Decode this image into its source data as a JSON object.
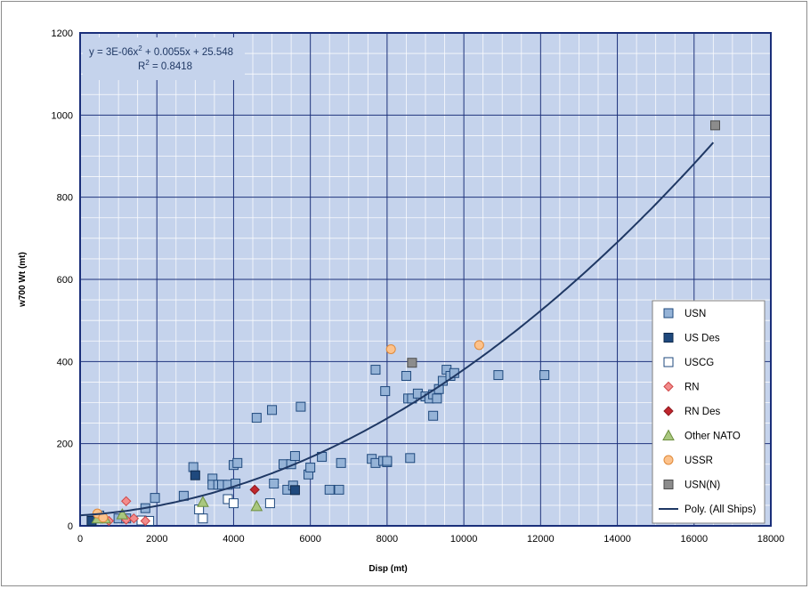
{
  "chart_data": {
    "type": "scatter",
    "title": "",
    "xlabel": "Disp (mt)",
    "ylabel": "w700 Wt (mt)",
    "xlim": [
      0,
      18000
    ],
    "ylim": [
      0,
      1200
    ],
    "x_ticks": [
      0,
      2000,
      4000,
      6000,
      8000,
      10000,
      12000,
      14000,
      16000,
      18000
    ],
    "y_ticks": [
      0,
      200,
      400,
      600,
      800,
      1000,
      1200
    ],
    "grid": true,
    "legend_position": "right",
    "trendline": {
      "name": "Poly. (All Ships)",
      "equation": "y = 3E-06x",
      "equation_exp": "2",
      "equation_tail": " + 0.0055x + 25.548",
      "r2_label": "R",
      "r2_exp": "2",
      "r2_value": " = 0.8418",
      "coefficients": [
        3e-06,
        0.0055,
        25.548
      ],
      "x_range": [
        0,
        16550
      ]
    },
    "series": [
      {
        "name": "USN",
        "marker": "square",
        "color": "#95b3d7",
        "stroke": "#1f497d",
        "points": [
          [
            2950,
            143
          ],
          [
            3450,
            115
          ],
          [
            3450,
            100
          ],
          [
            3600,
            100
          ],
          [
            3700,
            100
          ],
          [
            3850,
            100
          ],
          [
            4000,
            148
          ],
          [
            4050,
            103
          ],
          [
            4100,
            153
          ],
          [
            4600,
            263
          ],
          [
            5000,
            282
          ],
          [
            5050,
            103
          ],
          [
            5300,
            150
          ],
          [
            5400,
            88
          ],
          [
            5500,
            150
          ],
          [
            5600,
            170
          ],
          [
            5550,
            98
          ],
          [
            5750,
            290
          ],
          [
            5950,
            125
          ],
          [
            6000,
            142
          ],
          [
            6300,
            168
          ],
          [
            6500,
            88
          ],
          [
            6750,
            88
          ],
          [
            6800,
            153
          ],
          [
            7600,
            163
          ],
          [
            7700,
            153
          ],
          [
            7900,
            158
          ],
          [
            8000,
            155
          ],
          [
            8000,
            158
          ],
          [
            7700,
            380
          ],
          [
            7950,
            328
          ],
          [
            8500,
            365
          ],
          [
            8550,
            310
          ],
          [
            8650,
            310
          ],
          [
            8600,
            165
          ],
          [
            8800,
            322
          ],
          [
            9000,
            315
          ],
          [
            9100,
            310
          ],
          [
            9200,
            320
          ],
          [
            9300,
            310
          ],
          [
            9200,
            268
          ],
          [
            9350,
            333
          ],
          [
            9450,
            353
          ],
          [
            9550,
            380
          ],
          [
            9650,
            365
          ],
          [
            9750,
            372
          ],
          [
            10900,
            367
          ],
          [
            12100,
            367
          ],
          [
            1000,
            18
          ],
          [
            1200,
            18
          ],
          [
            1700,
            43
          ],
          [
            1950,
            68
          ],
          [
            2700,
            73
          ],
          [
            500,
            25
          ],
          [
            300,
            15
          ]
        ]
      },
      {
        "name": "US Des",
        "marker": "square",
        "color": "#1f497d",
        "stroke": "#0f2a4d",
        "points": [
          [
            3000,
            123
          ],
          [
            5600,
            87
          ],
          [
            300,
            12
          ]
        ]
      },
      {
        "name": "USCG",
        "marker": "square",
        "color": "#ffffff",
        "stroke": "#1f497d",
        "points": [
          [
            3100,
            40
          ],
          [
            3200,
            18
          ],
          [
            3850,
            65
          ],
          [
            4000,
            55
          ],
          [
            4950,
            55
          ],
          [
            1600,
            13
          ],
          [
            1800,
            12
          ]
        ]
      },
      {
        "name": "RN",
        "marker": "diamond",
        "color": "#f28c8c",
        "stroke": "#d04545",
        "points": [
          [
            1200,
            60
          ],
          [
            1200,
            15
          ],
          [
            750,
            12
          ],
          [
            1400,
            18
          ],
          [
            1700,
            12
          ],
          [
            550,
            22
          ]
        ]
      },
      {
        "name": "RN Des",
        "marker": "diamond",
        "color": "#c0262d",
        "stroke": "#8e1b20",
        "points": [
          [
            4550,
            88
          ]
        ]
      },
      {
        "name": "Other NATO",
        "marker": "triangle",
        "color": "#a9c77f",
        "stroke": "#6d8f3e",
        "points": [
          [
            3200,
            58
          ],
          [
            4600,
            48
          ],
          [
            1100,
            28
          ],
          [
            650,
            18
          ],
          [
            450,
            18
          ]
        ]
      },
      {
        "name": "USSR",
        "marker": "circle",
        "color": "#fcc28c",
        "stroke": "#e08a3a",
        "points": [
          [
            8100,
            430
          ],
          [
            10400,
            440
          ],
          [
            450,
            30
          ],
          [
            600,
            20
          ]
        ]
      },
      {
        "name": "USN(N)",
        "marker": "square",
        "color": "#8c8c8c",
        "stroke": "#4d4d4d",
        "points": [
          [
            8650,
            397
          ],
          [
            16550,
            975
          ]
        ]
      }
    ]
  }
}
